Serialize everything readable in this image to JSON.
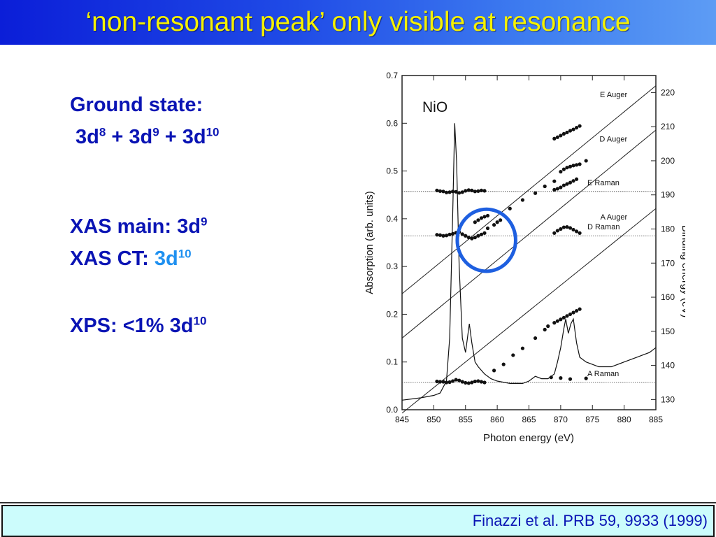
{
  "slide": {
    "title": "‘non-resonant peak’ only visible at resonance",
    "ground_state_label": "Ground state:",
    "ground_state_config": {
      "a": "3d",
      "a_sup": "8",
      "plus1": " + 3d",
      "b_sup": "9",
      "plus2": " + 3d",
      "c_sup": "10"
    },
    "xas_main": {
      "label": "XAS main: 3d",
      "sup": "9"
    },
    "xas_ct": {
      "label": "XAS CT: ",
      "value": "3d",
      "sup": "10",
      "value_color": "#1e90f0"
    },
    "xps": {
      "label": "XPS: <1% 3d",
      "sup": "10"
    },
    "citation": "Finazzi et al. PRB 59, 9933 (1999)",
    "colors": {
      "title_text": "#f5f100",
      "body_text": "#0a14b4",
      "highlight_circle": "#1e5fe0",
      "footer_bg": "#ccfcfc"
    }
  },
  "chart_data": {
    "type": "line",
    "sample_label": "NiO",
    "xlabel": "Photon energy (eV)",
    "ylabel": "Absorption (arb. units)",
    "y2label": "Binding energy (eV)",
    "xlim": [
      845,
      885
    ],
    "ylim": [
      0.0,
      0.7
    ],
    "y2lim": [
      127,
      225
    ],
    "x_ticks": [
      845,
      850,
      855,
      860,
      865,
      870,
      875,
      880,
      885
    ],
    "y_ticks": [
      0.0,
      0.1,
      0.2,
      0.3,
      0.4,
      0.5,
      0.6,
      0.7
    ],
    "y_tick_labels": [
      "0.0",
      "0.1",
      "0.2",
      "0.3",
      "0.4",
      "0.5",
      "0.6",
      "0.7"
    ],
    "y2_ticks": [
      130,
      140,
      150,
      160,
      170,
      180,
      190,
      200,
      210,
      220
    ],
    "absorption": {
      "x": [
        845,
        848,
        850,
        851,
        852,
        852.5,
        853,
        853.3,
        853.6,
        854,
        854.5,
        855,
        855.3,
        855.6,
        856,
        856.5,
        857,
        858,
        859,
        860,
        862,
        864,
        865,
        866,
        867,
        868,
        869,
        869.5,
        870,
        870.5,
        870.8,
        871.2,
        871.6,
        872,
        872.5,
        873,
        874,
        876,
        878,
        880,
        882,
        884,
        885
      ],
      "y": [
        0.02,
        0.025,
        0.03,
        0.035,
        0.06,
        0.15,
        0.42,
        0.6,
        0.52,
        0.3,
        0.15,
        0.12,
        0.15,
        0.18,
        0.14,
        0.1,
        0.09,
        0.075,
        0.065,
        0.06,
        0.055,
        0.055,
        0.06,
        0.07,
        0.065,
        0.065,
        0.075,
        0.1,
        0.13,
        0.17,
        0.19,
        0.16,
        0.18,
        0.19,
        0.14,
        0.11,
        0.1,
        0.09,
        0.09,
        0.1,
        0.11,
        0.12,
        0.13
      ]
    },
    "auger_lines": [
      {
        "name": "E Auger",
        "x1": 845,
        "y1": 161,
        "x2": 885,
        "y2": 222
      },
      {
        "name": "D Auger",
        "x1": 845,
        "y1": 148,
        "x2": 885,
        "y2": 209
      },
      {
        "name": "A Auger",
        "x1": 845,
        "y1": 126,
        "x2": 885,
        "y2": 186
      }
    ],
    "raman_lines": [
      {
        "name": "E Raman",
        "y": 191
      },
      {
        "name": "D Raman",
        "y": 178
      },
      {
        "name": "A Raman",
        "y": 135
      }
    ],
    "series": [
      {
        "x": [
          850.5,
          851,
          851.5,
          852,
          852.5,
          853,
          853.5,
          854,
          854.5,
          855,
          855.5,
          856,
          856.5,
          857,
          857.5,
          858
        ],
        "y": [
          191.3,
          191.1,
          191.0,
          190.7,
          190.8,
          191.0,
          190.9,
          190.6,
          190.8,
          191.2,
          191.4,
          191.3,
          191.0,
          191.1,
          191.3,
          191.2
        ]
      },
      {
        "x": [
          850.5,
          851,
          851.5,
          852,
          852.5,
          853,
          853.5,
          854,
          854.5,
          855,
          855.5,
          856,
          856.5,
          857,
          857.5,
          858
        ],
        "y": [
          178.3,
          178.2,
          178.0,
          178.1,
          178.4,
          178.6,
          178.9,
          179.1,
          178.5,
          178.0,
          177.5,
          177.2,
          177.5,
          178.0,
          178.4,
          178.8
        ]
      },
      {
        "x": [
          850.5,
          851,
          851.5,
          852,
          852.5,
          853,
          853.5,
          854,
          854.5,
          855,
          855.5,
          856,
          856.5,
          857,
          857.5,
          858
        ],
        "y": [
          135.3,
          135.2,
          135.2,
          135.0,
          135.1,
          135.4,
          135.8,
          135.6,
          135.2,
          134.9,
          134.8,
          135.0,
          135.3,
          135.4,
          135.2,
          135.0
        ]
      },
      {
        "x": [
          856.5,
          857,
          857.5,
          858,
          858.5
        ],
        "y": [
          182.0,
          182.6,
          183.2,
          183.6,
          183.9
        ]
      },
      {
        "x": [
          858.5,
          859.5,
          860,
          860.5
        ],
        "y": [
          180.2,
          181.2,
          182.0,
          182.6
        ]
      },
      {
        "x": [
          859.5,
          861,
          862.5,
          864,
          866,
          867.5
        ],
        "y": [
          138.5,
          140.3,
          143.0,
          145.0,
          148.0,
          150.5
        ]
      },
      {
        "x": [
          862,
          864,
          866,
          867.5,
          869
        ],
        "y": [
          186.0,
          188.5,
          190.5,
          192.5,
          194.0
        ]
      },
      {
        "x": [
          869,
          869.5,
          870,
          870.5,
          871,
          871.5,
          872,
          872.5,
          873
        ],
        "y": [
          206.5,
          206.9,
          207.4,
          207.9,
          208.3,
          208.8,
          209.2,
          209.7,
          210.2
        ]
      },
      {
        "x": [
          870,
          870.5,
          871,
          871.5,
          872,
          872.5,
          873,
          874
        ],
        "y": [
          196.8,
          197.5,
          198.0,
          198.3,
          198.6,
          198.8,
          199.0,
          200.0
        ]
      },
      {
        "x": [
          869,
          869.5,
          870,
          870.5,
          871,
          871.5,
          872,
          872.5
        ],
        "y": [
          191.5,
          191.8,
          192.2,
          192.8,
          193.2,
          193.6,
          194.1,
          194.6
        ]
      },
      {
        "x": [
          869,
          869.5,
          870,
          870.5,
          871,
          871.5,
          872,
          872.5,
          873
        ],
        "y": [
          178.8,
          179.5,
          180.0,
          180.5,
          180.6,
          180.3,
          179.8,
          179.3,
          178.8
        ]
      },
      {
        "x": [
          868,
          869,
          869.5,
          870,
          870.5,
          871,
          871.5,
          872,
          872.5,
          873
        ],
        "y": [
          151.5,
          152.5,
          153.0,
          153.5,
          154.0,
          154.5,
          155.0,
          155.5,
          156.0,
          156.5
        ]
      },
      {
        "x": [
          868.5,
          870,
          871.5
        ],
        "y": [
          136.5,
          136.3,
          136.0
        ]
      },
      {
        "x": [
          874
        ],
        "y": [
          136.2
        ]
      }
    ],
    "highlight": {
      "x_center": 858.3,
      "y_center": 0.355,
      "rx_data": 4.6,
      "ry_data": 0.065
    }
  }
}
